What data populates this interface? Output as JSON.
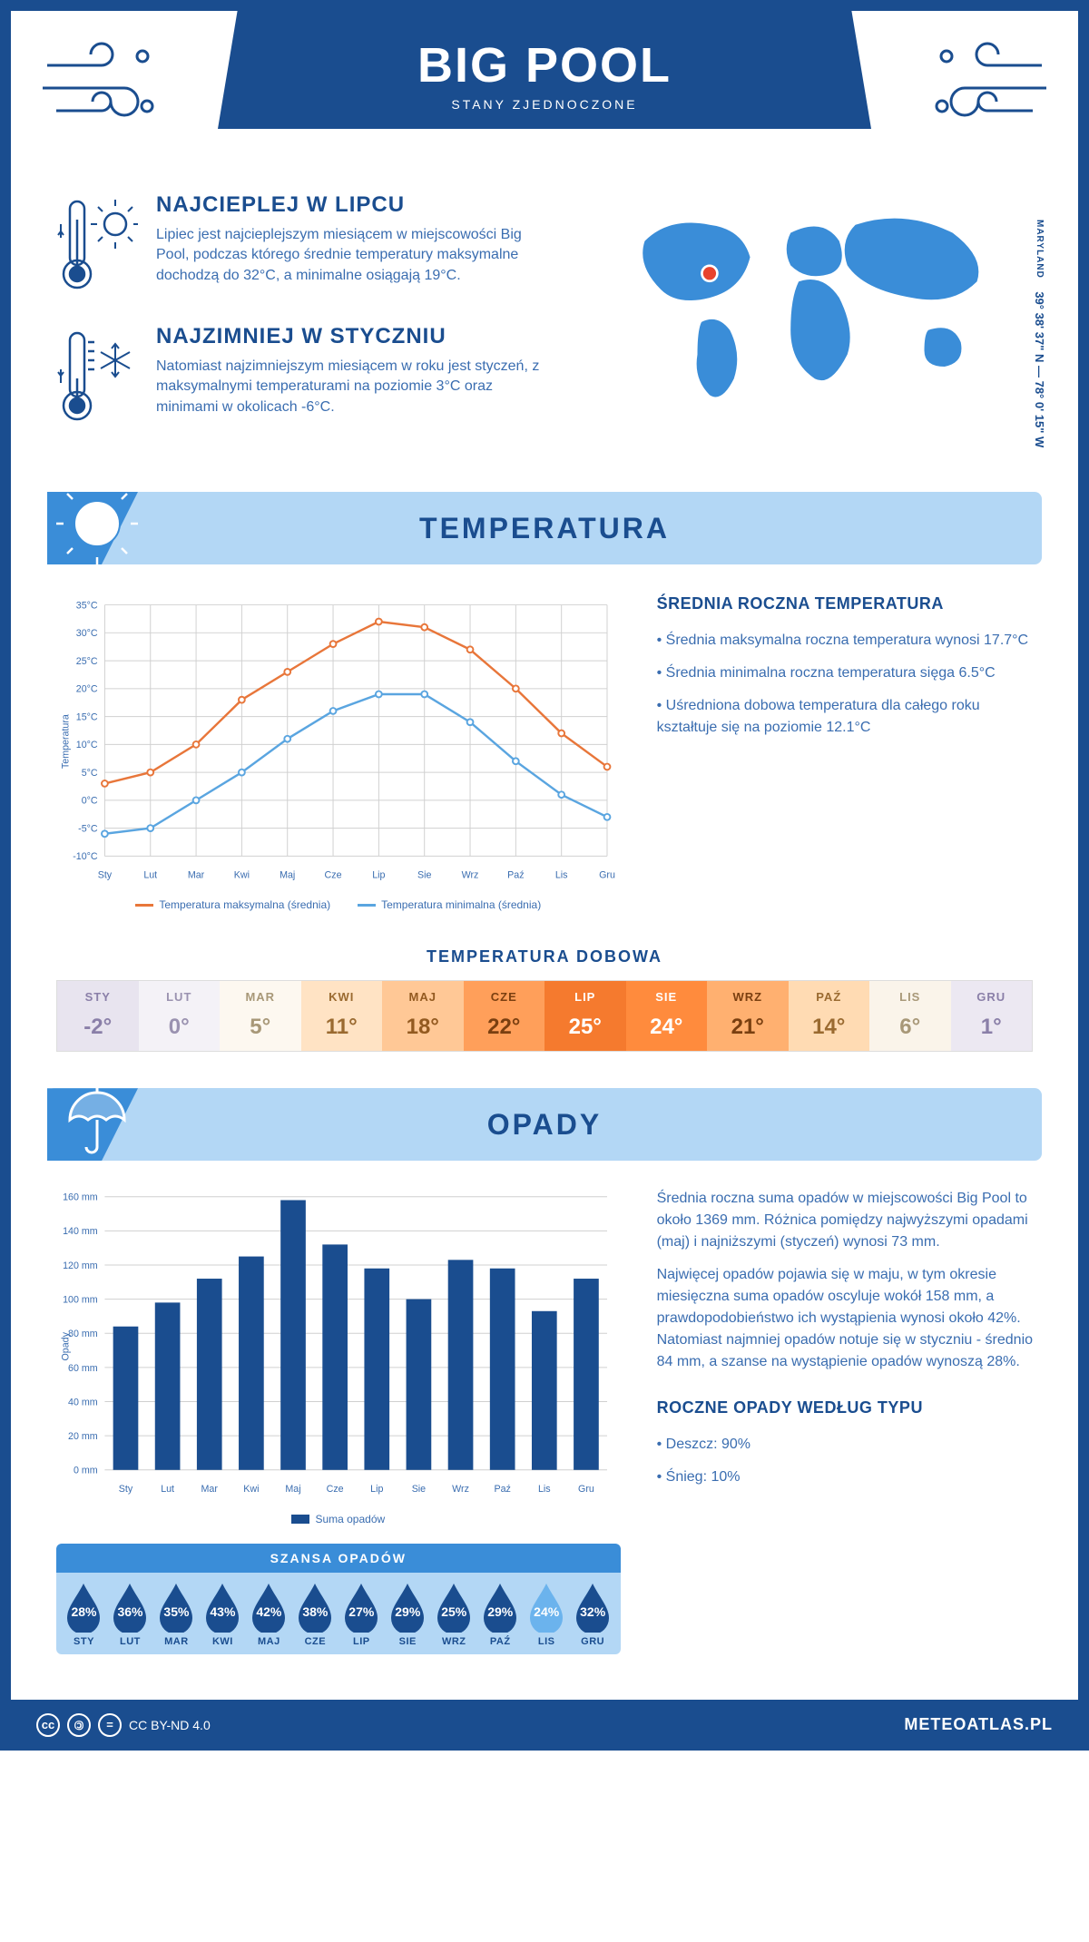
{
  "header": {
    "title": "BIG POOL",
    "subtitle": "STANY ZJEDNOCZONE"
  },
  "coords": {
    "text": "39° 38' 37\" N — 78° 0' 15\" W",
    "region": "MARYLAND"
  },
  "facts": {
    "hot": {
      "title": "NAJCIEPLEJ W LIPCU",
      "text": "Lipiec jest najcieplejszym miesiącem w miejscowości Big Pool, podczas którego średnie temperatury maksymalne dochodzą do 32°C, a minimalne osiągają 19°C."
    },
    "cold": {
      "title": "NAJZIMNIEJ W STYCZNIU",
      "text": "Natomiast najzimniejszym miesiącem w roku jest styczeń, z maksymalnymi temperaturami na poziomie 3°C oraz minimami w okolicach -6°C."
    }
  },
  "temp_section": {
    "title": "TEMPERATURA",
    "side_title": "ŚREDNIA ROCZNA TEMPERATURA",
    "bullets": [
      "Średnia maksymalna roczna temperatura wynosi 17.7°C",
      "Średnia minimalna roczna temperatura sięga 6.5°C",
      "Uśredniona dobowa temperatura dla całego roku kształtuje się na poziomie 12.1°C"
    ],
    "chart": {
      "type": "line",
      "months": [
        "Sty",
        "Lut",
        "Mar",
        "Kwi",
        "Maj",
        "Cze",
        "Lip",
        "Sie",
        "Wrz",
        "Paź",
        "Lis",
        "Gru"
      ],
      "max_series": [
        3,
        5,
        10,
        18,
        23,
        28,
        32,
        31,
        27,
        20,
        12,
        6
      ],
      "min_series": [
        -6,
        -5,
        0,
        5,
        11,
        16,
        19,
        19,
        14,
        7,
        1,
        -3
      ],
      "ylim": [
        -10,
        35
      ],
      "ytick_step": 5,
      "max_color": "#e8763a",
      "min_color": "#5aa5e0",
      "grid_color": "#d0d0d0",
      "ylabel": "Temperatura",
      "legend_max": "Temperatura maksymalna (średnia)",
      "legend_min": "Temperatura minimalna (średnia)"
    },
    "daily_title": "TEMPERATURA DOBOWA",
    "daily": {
      "months": [
        "STY",
        "LUT",
        "MAR",
        "KWI",
        "MAJ",
        "CZE",
        "LIP",
        "SIE",
        "WRZ",
        "PAŹ",
        "LIS",
        "GRU"
      ],
      "values": [
        "-2°",
        "0°",
        "5°",
        "11°",
        "18°",
        "22°",
        "25°",
        "24°",
        "21°",
        "14°",
        "6°",
        "1°"
      ],
      "bg_colors": [
        "#e8e4ef",
        "#f4f2f7",
        "#fdf8f0",
        "#ffe3c4",
        "#ffc896",
        "#ff9f5a",
        "#f57a2e",
        "#ff8b3d",
        "#ffb070",
        "#ffdbb3",
        "#faf4ea",
        "#ece8f2"
      ],
      "text_colors": [
        "#8a7fa8",
        "#9a92b0",
        "#a89878",
        "#9a6a30",
        "#935a20",
        "#7a3f10",
        "#ffffff",
        "#ffffff",
        "#7a3f10",
        "#9a6a30",
        "#a89878",
        "#8a7fa8"
      ]
    }
  },
  "rain_section": {
    "title": "OPADY",
    "text1": "Średnia roczna suma opadów w miejscowości Big Pool to około 1369 mm. Różnica pomiędzy najwyższymi opadami (maj) i najniższymi (styczeń) wynosi 73 mm.",
    "text2": "Najwięcej opadów pojawia się w maju, w tym okresie miesięczna suma opadów oscyluje wokół 158 mm, a prawdopodobieństwo ich wystąpienia wynosi około 42%. Natomiast najmniej opadów notuje się w styczniu - średnio 84 mm, a szanse na wystąpienie opadów wynoszą 28%.",
    "chart": {
      "type": "bar",
      "months": [
        "Sty",
        "Lut",
        "Mar",
        "Kwi",
        "Maj",
        "Cze",
        "Lip",
        "Sie",
        "Wrz",
        "Paź",
        "Lis",
        "Gru"
      ],
      "values": [
        84,
        98,
        112,
        125,
        158,
        132,
        118,
        100,
        123,
        118,
        93,
        112
      ],
      "ylim": [
        0,
        160
      ],
      "ytick_step": 20,
      "bar_color": "#1a4d8f",
      "grid_color": "#d0d0d0",
      "ylabel": "Opady",
      "legend": "Suma opadów"
    },
    "chance_title": "SZANSA OPADÓW",
    "chance": {
      "months": [
        "STY",
        "LUT",
        "MAR",
        "KWI",
        "MAJ",
        "CZE",
        "LIP",
        "SIE",
        "WRZ",
        "PAŹ",
        "LIS",
        "GRU"
      ],
      "values": [
        "28%",
        "36%",
        "35%",
        "43%",
        "42%",
        "38%",
        "27%",
        "29%",
        "25%",
        "29%",
        "24%",
        "32%"
      ],
      "drop_colors": [
        "#1a4d8f",
        "#1a4d8f",
        "#1a4d8f",
        "#1a4d8f",
        "#1a4d8f",
        "#1a4d8f",
        "#1a4d8f",
        "#1a4d8f",
        "#1a4d8f",
        "#1a4d8f",
        "#6bb3ed",
        "#1a4d8f"
      ]
    },
    "type_title": "ROCZNE OPADY WEDŁUG TYPU",
    "type_bullets": [
      "Deszcz: 90%",
      "Śnieg: 10%"
    ]
  },
  "footer": {
    "license": "CC BY-ND 4.0",
    "site": "METEOATLAS.PL"
  },
  "colors": {
    "primary": "#1a4d8f",
    "light_blue": "#b3d7f5",
    "mid_blue": "#3a8dd8"
  }
}
